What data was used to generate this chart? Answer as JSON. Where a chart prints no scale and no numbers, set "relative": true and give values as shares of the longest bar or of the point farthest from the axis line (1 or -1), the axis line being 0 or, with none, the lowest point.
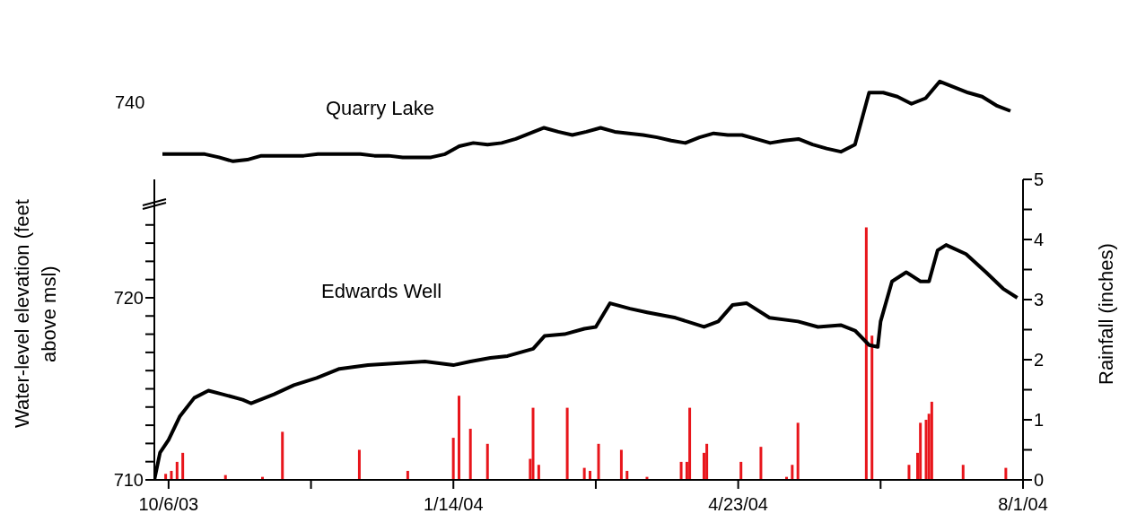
{
  "chart_data": [
    {
      "type": "line",
      "relative": true,
      "categories": [
        null,
        null,
        null,
        null,
        null,
        null,
        null,
        null,
        null,
        null,
        null,
        null,
        null,
        null,
        null,
        null,
        null,
        null,
        null,
        null,
        null,
        null,
        null,
        null,
        null,
        null,
        null,
        null,
        null,
        null,
        null,
        null,
        null,
        null,
        null,
        null,
        null,
        null,
        null,
        null,
        null,
        null,
        null,
        null,
        null,
        null,
        null,
        null,
        null,
        null,
        null,
        null,
        null,
        null,
        null,
        null,
        null,
        null,
        null,
        null,
        null
      ],
      "annotations": [
        "740"
      ],
      "series": [
        {
          "name": "Quarry Lake",
          "color": "#000000",
          "values": [
            0.09,
            0.09,
            0.09,
            0.09,
            0.05,
            0,
            0.02,
            0.07,
            0.07,
            0.07,
            0.07,
            0.09,
            0.09,
            0.09,
            0.09,
            0.07,
            0.07,
            0.05,
            0.05,
            0.05,
            0.09,
            0.19,
            0.23,
            0.21,
            0.23,
            0.28,
            0.35,
            0.42,
            0.37,
            0.33,
            0.37,
            0.42,
            0.37,
            0.35,
            0.33,
            0.3,
            0.26,
            0.23,
            0.3,
            0.35,
            0.33,
            0.33,
            0.28,
            0.23,
            0.26,
            0.28,
            0.21,
            0.16,
            0.12,
            0.21,
            0.86,
            0.86,
            0.81,
            0.72,
            0.79,
            1,
            0.93,
            0.86,
            0.81,
            0.7,
            0.63
          ]
        }
      ]
    },
    {
      "type": "line",
      "ylabel": "Water-level elevation (feet above msl)",
      "y2label": "Rainfall (inches)",
      "xlim": [
        "2003-10-01",
        "2004-08-01"
      ],
      "xticks": [
        {
          "value": "2003-10-06",
          "label": "10/6/03"
        },
        {
          "value": "2003-11-25",
          "label": null
        },
        {
          "value": "2004-01-14",
          "label": "1/14/04"
        },
        {
          "value": "2004-03-04",
          "label": null
        },
        {
          "value": "2004-04-23",
          "label": "4/23/04"
        },
        {
          "value": "2004-06-12",
          "label": null
        },
        {
          "value": "2004-08-01",
          "label": "8/1/04"
        }
      ],
      "ylim": [
        710,
        726.5
      ],
      "yticks": [
        710,
        {
          "value": 711,
          "label": null
        },
        {
          "value": 712,
          "label": null
        },
        {
          "value": 713,
          "label": null
        },
        {
          "value": 714,
          "label": null
        },
        {
          "value": 715,
          "label": null
        },
        {
          "value": 716,
          "label": null
        },
        {
          "value": 717,
          "label": null
        },
        {
          "value": 718,
          "label": null
        },
        {
          "value": 719,
          "label": null
        },
        720,
        {
          "value": 721,
          "label": null
        },
        {
          "value": 722,
          "label": null
        },
        {
          "value": 723,
          "label": null
        },
        {
          "value": 724,
          "label": null
        }
      ],
      "y2lim": [
        0,
        5
      ],
      "y2ticks": [
        0,
        {
          "value": 0.5,
          "label": null
        },
        1,
        {
          "value": 1.5,
          "label": null
        },
        2,
        {
          "value": 2.5,
          "label": null
        },
        3,
        {
          "value": 3.5,
          "label": null
        },
        4,
        {
          "value": 4.5,
          "label": null
        },
        5
      ],
      "series": [
        {
          "type": "bar",
          "axis": "y2",
          "color": "#e8151b",
          "x": [
            "2003-10-05",
            "2003-10-07",
            "2003-10-09",
            "2003-10-11",
            "2003-10-26",
            "2003-11-08",
            "2003-11-15",
            "2003-12-12",
            "2003-12-29",
            "2004-01-14",
            "2004-01-16",
            "2004-01-20",
            "2004-01-26",
            "2004-02-10",
            "2004-02-11",
            "2004-02-13",
            "2004-02-23",
            "2004-02-29",
            "2004-03-02",
            "2004-03-05",
            "2004-03-13",
            "2004-03-15",
            "2004-03-22",
            "2004-04-03",
            "2004-04-05",
            "2004-04-06",
            "2004-04-11",
            "2004-04-12",
            "2004-04-24",
            "2004-05-01",
            "2004-05-10",
            "2004-05-12",
            "2004-05-14",
            "2004-06-07",
            "2004-06-09",
            "2004-06-22",
            "2004-06-25",
            "2004-06-26",
            "2004-06-28",
            "2004-06-29",
            "2004-06-30",
            "2004-07-11",
            "2004-07-26"
          ],
          "values": [
            0.1,
            0.15,
            0.3,
            0.45,
            0.08,
            0.05,
            0.8,
            0.5,
            0.15,
            0.7,
            1.4,
            0.85,
            0.6,
            0.35,
            1.2,
            0.25,
            1.2,
            0.2,
            0.15,
            0.6,
            0.5,
            0.15,
            0.05,
            0.3,
            0.3,
            1.2,
            0.45,
            0.6,
            0.3,
            0.55,
            0.05,
            0.25,
            0.95,
            4.2,
            2.4,
            0.25,
            0.45,
            0.95,
            1.0,
            1.1,
            1.3,
            0.25,
            0.2
          ]
        },
        {
          "name": "Edwards Well",
          "color": "#000000",
          "x": [
            "2003-10-01",
            "2003-10-03",
            "2003-10-06",
            "2003-10-10",
            "2003-10-15",
            "2003-10-20",
            "2003-10-25",
            "2003-11-01",
            "2003-11-04",
            "2003-11-12",
            "2003-11-19",
            "2003-11-27",
            "2003-12-05",
            "2003-12-15",
            "2003-12-25",
            "2004-01-04",
            "2004-01-09",
            "2004-01-14",
            "2004-01-20",
            "2004-01-27",
            "2004-02-02",
            "2004-02-11",
            "2004-02-15",
            "2004-02-22",
            "2004-02-29",
            "2004-03-04",
            "2004-03-09",
            "2004-03-16",
            "2004-03-22",
            "2004-04-01",
            "2004-04-11",
            "2004-04-16",
            "2004-04-21",
            "2004-04-26",
            "2004-05-04",
            "2004-05-14",
            "2004-05-21",
            "2004-05-29",
            "2004-06-03",
            "2004-06-08",
            "2004-06-11",
            "2004-06-12",
            "2004-06-16",
            "2004-06-21",
            "2004-06-26",
            "2004-06-29",
            "2004-07-02",
            "2004-07-05",
            "2004-07-12",
            "2004-07-19",
            "2004-07-25",
            "2004-07-30"
          ],
          "values": [
            710.0,
            711.5,
            712.2,
            713.5,
            714.5,
            714.9,
            714.7,
            714.4,
            714.2,
            714.7,
            715.2,
            715.6,
            716.1,
            716.3,
            716.4,
            716.5,
            716.4,
            716.3,
            716.5,
            716.7,
            716.8,
            717.2,
            717.9,
            718.0,
            718.3,
            718.4,
            719.7,
            719.4,
            719.2,
            718.9,
            718.4,
            718.7,
            719.6,
            719.7,
            718.9,
            718.7,
            718.4,
            718.5,
            718.2,
            717.4,
            717.3,
            718.7,
            720.9,
            721.4,
            720.9,
            720.9,
            722.6,
            722.9,
            722.4,
            721.4,
            720.5,
            720.0
          ]
        }
      ]
    }
  ]
}
